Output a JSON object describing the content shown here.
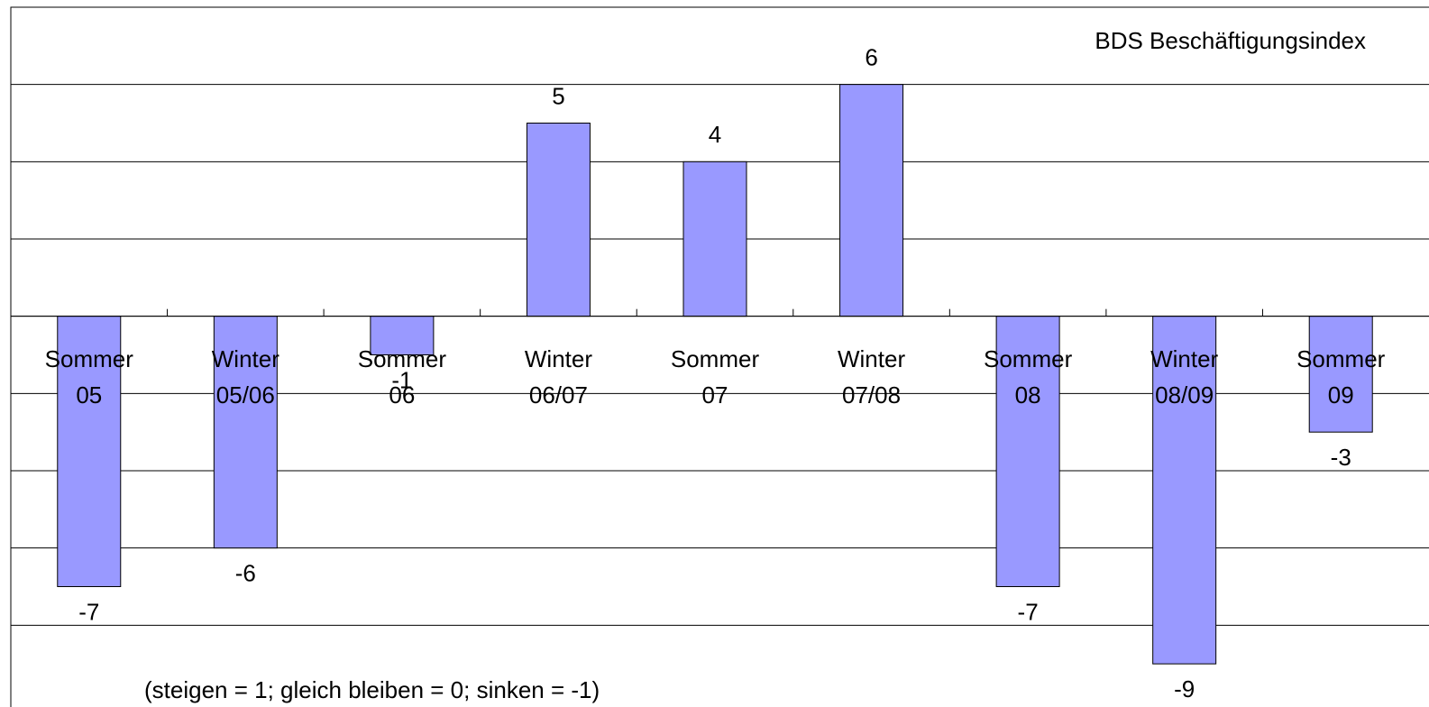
{
  "chart_data": {
    "type": "bar",
    "title": "BDS Beschäftigungsindex",
    "annotation": "(steigen = 1; gleich bleiben = 0; sinken = -1)",
    "categories": [
      "Sommer 05",
      "Winter 05/06",
      "Sommer 06",
      "Winter 06/07",
      "Sommer 07",
      "Winter 07/08",
      "Sommer 08",
      "Winter 08/09",
      "Sommer 09"
    ],
    "values": [
      -7,
      -6,
      -1,
      5,
      4,
      6,
      -7,
      -9,
      -3
    ],
    "color": "#9999ff",
    "ylim": [
      -10,
      8
    ],
    "yticks": [
      -8,
      -6,
      -4,
      -2,
      0,
      2,
      4,
      6
    ],
    "grid": true
  }
}
